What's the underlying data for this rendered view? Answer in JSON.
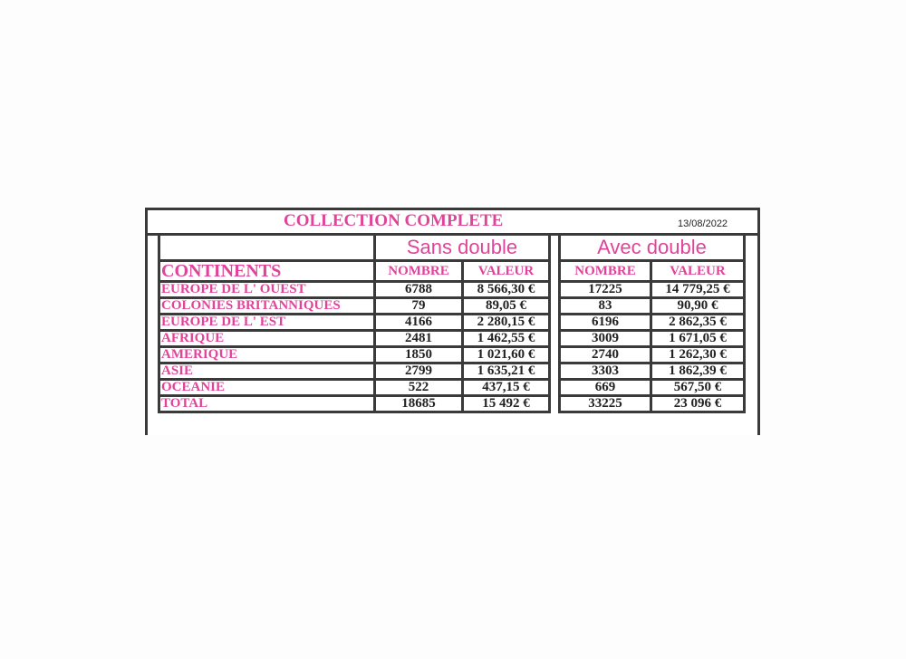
{
  "title": "COLLECTION COMPLETE",
  "date": "13/08/2022",
  "groups": [
    "Sans double",
    "Avec double"
  ],
  "headers": {
    "continents": "CONTINENTS",
    "nombre": "NOMBRE",
    "valeur": "VALEUR"
  },
  "rows": [
    {
      "name": "EUROPE DE L' OUEST",
      "sans_nombre": "6788",
      "sans_valeur": "8 566,30 €",
      "avec_nombre": "17225",
      "avec_valeur": "14 779,25 €"
    },
    {
      "name": "COLONIES BRITANNIQUES",
      "sans_nombre": "79",
      "sans_valeur": "89,05 €",
      "avec_nombre": "83",
      "avec_valeur": "90,90 €"
    },
    {
      "name": "EUROPE DE L' EST",
      "sans_nombre": "4166",
      "sans_valeur": "2 280,15 €",
      "avec_nombre": "6196",
      "avec_valeur": "2 862,35 €"
    },
    {
      "name": "AFRIQUE",
      "sans_nombre": "2481",
      "sans_valeur": "1 462,55 €",
      "avec_nombre": "3009",
      "avec_valeur": "1 671,05 €"
    },
    {
      "name": "AMERIQUE",
      "sans_nombre": "1850",
      "sans_valeur": "1 021,60 €",
      "avec_nombre": "2740",
      "avec_valeur": "1 262,30 €"
    },
    {
      "name": "ASIE",
      "sans_nombre": "2799",
      "sans_valeur": "1 635,21 €",
      "avec_nombre": "3303",
      "avec_valeur": "1 862,39 €"
    },
    {
      "name": "OCEANIE",
      "sans_nombre": "522",
      "sans_valeur": "437,15 €",
      "avec_nombre": "669",
      "avec_valeur": "567,50 €"
    },
    {
      "name": "TOTAL",
      "sans_nombre": "18685",
      "sans_valeur": "15 492 €",
      "avec_nombre": "33225",
      "avec_valeur": "23 096 €"
    }
  ],
  "colors": {
    "pink": "#e0449a",
    "border": "#3a3a3a"
  }
}
